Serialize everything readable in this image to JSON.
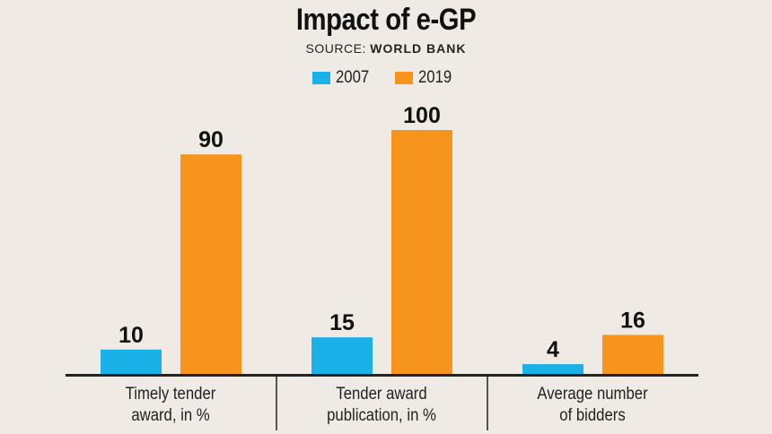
{
  "header": {
    "title": "Impact of e-GP",
    "source_label": "SOURCE:",
    "source_value": "WORLD BANK"
  },
  "colors": {
    "series_2007": "#1ab0e8",
    "series_2019": "#f7941d",
    "background": "#efebe4",
    "axis": "#222222"
  },
  "chart_data": {
    "type": "bar",
    "title": "Impact of e-GP",
    "categories": [
      "Timely tender\naward, in %",
      "Tender award\npublication, in %",
      "Average number\nof bidders"
    ],
    "series": [
      {
        "name": "2007",
        "values": [
          10,
          15,
          4
        ]
      },
      {
        "name": "2019",
        "values": [
          90,
          100,
          16
        ]
      }
    ],
    "legend_placement": "top-center",
    "grid": false,
    "ylim": [
      0,
      100
    ]
  }
}
